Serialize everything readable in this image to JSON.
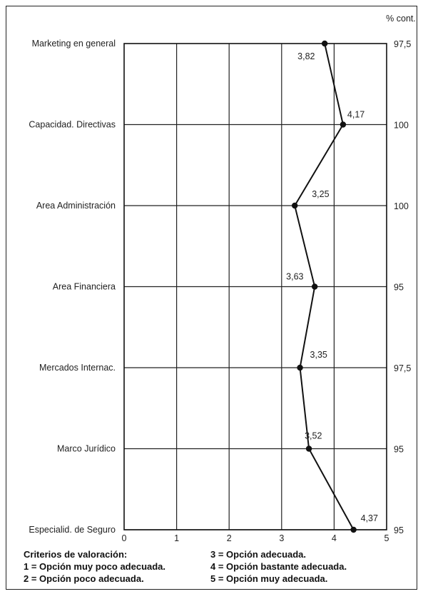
{
  "chart_data": {
    "type": "line",
    "orientation": "horizontal",
    "categories": [
      "Marketing en general",
      "Capacidad. Directivas",
      "Area Administración",
      "Area Financiera",
      "Mercados Internac.",
      "Marco Jurídico",
      "Especialid. de Seguro"
    ],
    "values": [
      3.82,
      4.17,
      3.25,
      3.63,
      3.35,
      3.52,
      4.37
    ],
    "value_labels": [
      "3,82",
      "4,17",
      "3,25",
      "3,63",
      "3,35",
      "3,52",
      "4,37"
    ],
    "right_axis_title": "% cont.",
    "right_axis_values": [
      "97,5",
      "100",
      "100",
      "95",
      "97,5",
      "95",
      "95"
    ],
    "x_ticks": [
      "0",
      "1",
      "2",
      "3",
      "4",
      "5"
    ],
    "xlim": [
      0,
      5
    ],
    "grid": true,
    "line_color": "#111111"
  },
  "legend": {
    "title": "Criterios de valoración:",
    "items": [
      "1 = Opción muy poco adecuada.",
      "2 = Opción poco adecuada.",
      "3 = Opción adecuada.",
      "4 = Opción bastante adecuada.",
      "5 = Opción muy adecuada."
    ]
  }
}
